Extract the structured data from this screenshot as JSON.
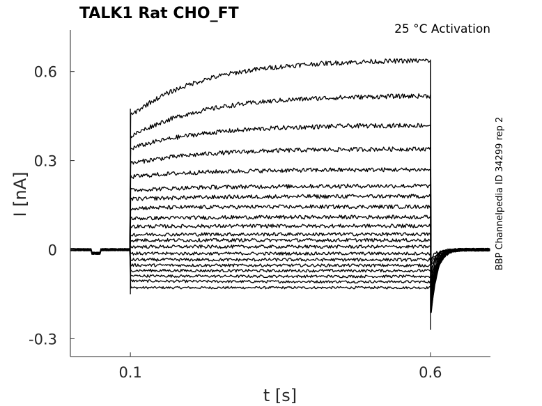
{
  "chart_data": {
    "type": "line",
    "title": "TALK1  Rat  CHO_FT",
    "subtitle": "25 °C  Activation",
    "side_label": "BBP Channelpedia ID 34299 rep 2",
    "xlabel": "t [s]",
    "ylabel": "I [nA]",
    "xlim": [
      0.0,
      0.7
    ],
    "ylim": [
      -0.36,
      0.74
    ],
    "xticks": [
      {
        "value": 0.1,
        "label": "0.1"
      },
      {
        "value": 0.6,
        "label": "0.6"
      }
    ],
    "yticks": [
      {
        "value": 0.6,
        "label": "0.6"
      },
      {
        "value": 0.3,
        "label": "0.3"
      },
      {
        "value": 0.0,
        "label": "0"
      },
      {
        "value": -0.3,
        "label": "-0.3"
      }
    ],
    "grid": false,
    "step_start": 0.1,
    "step_end": 0.6,
    "series": [
      {
        "steady": -0.128,
        "start": -0.128
      },
      {
        "steady": -0.108,
        "start": -0.105
      },
      {
        "steady": -0.09,
        "start": -0.088
      },
      {
        "steady": -0.071,
        "start": -0.07
      },
      {
        "steady": -0.053,
        "start": -0.052
      },
      {
        "steady": -0.034,
        "start": -0.034
      },
      {
        "steady": -0.013,
        "start": -0.013
      },
      {
        "steady": 0.01,
        "start": 0.01
      },
      {
        "steady": 0.032,
        "start": 0.032
      },
      {
        "steady": 0.052,
        "start": 0.051
      },
      {
        "steady": 0.08,
        "start": 0.078
      },
      {
        "steady": 0.11,
        "start": 0.105
      },
      {
        "steady": 0.145,
        "start": 0.14
      },
      {
        "steady": 0.18,
        "start": 0.17
      },
      {
        "steady": 0.215,
        "start": 0.2
      },
      {
        "steady": 0.27,
        "start": 0.245
      },
      {
        "steady": 0.34,
        "start": 0.29
      },
      {
        "steady": 0.42,
        "start": 0.34
      },
      {
        "steady": 0.52,
        "start": 0.38
      },
      {
        "steady": 0.64,
        "start": 0.45
      }
    ]
  }
}
